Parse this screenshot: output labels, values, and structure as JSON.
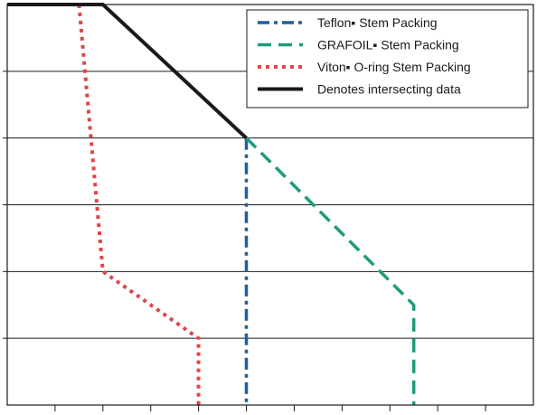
{
  "chart_data": {
    "type": "line",
    "title": "",
    "xlabel": "",
    "ylabel": "",
    "xlim": [
      0,
      11
    ],
    "ylim": [
      0,
      6
    ],
    "grid": "horizontal",
    "legend_position": "top-right",
    "series": [
      {
        "name": "Teflon▪ Stem Packing",
        "color": "#1f5fa0",
        "style": "dash-dot",
        "points": [
          [
            5.0,
            4.0
          ],
          [
            5.0,
            0.0
          ]
        ]
      },
      {
        "name": "GRAFOIL▪ Stem Packing",
        "color": "#1f9a7a",
        "style": "dashed",
        "points": [
          [
            5.0,
            4.0
          ],
          [
            8.5,
            1.5
          ],
          [
            8.5,
            0.0
          ]
        ]
      },
      {
        "name": "Viton▪ O-ring Stem Packing",
        "color": "#e0454a",
        "style": "dotted",
        "points": [
          [
            1.5,
            6.0
          ],
          [
            2.0,
            2.0
          ],
          [
            4.0,
            1.0
          ],
          [
            4.0,
            0.0
          ]
        ]
      },
      {
        "name": "Denotes intersecting data",
        "color": "#1a1a1a",
        "style": "solid",
        "points": [
          [
            0.0,
            6.0
          ],
          [
            2.0,
            6.0
          ],
          [
            5.0,
            4.0
          ]
        ]
      }
    ]
  }
}
